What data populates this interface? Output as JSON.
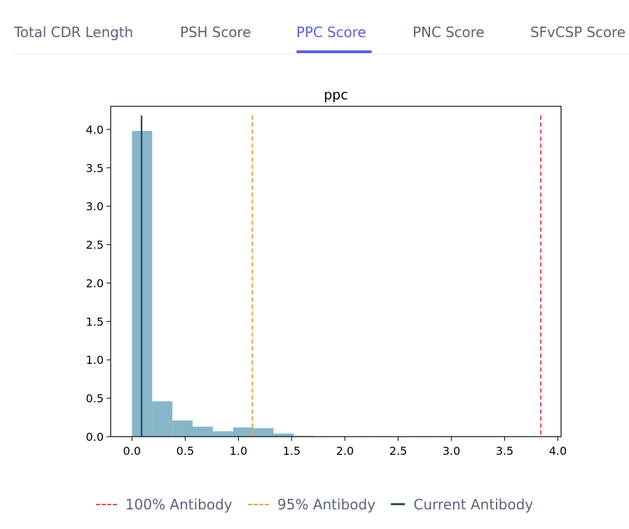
{
  "tabs": [
    {
      "label": "Total CDR Length",
      "active": false
    },
    {
      "label": "PSH Score",
      "active": false
    },
    {
      "label": "PPC Score",
      "active": true
    },
    {
      "label": "PNC Score",
      "active": false
    },
    {
      "label": "SFvCSP Score",
      "active": false
    }
  ],
  "colors": {
    "accent": "#5a61d6",
    "bars": "#86b6c8",
    "line_100": "#e8494b",
    "line_95": "#f0a04a",
    "line_current": "#2f4f67"
  },
  "legend": {
    "items": [
      {
        "label": "100% Antibody",
        "style": "dashed",
        "color": "#e8494b"
      },
      {
        "label": "95% Antibody",
        "style": "dashed",
        "color": "#f0a04a"
      },
      {
        "label": "Current Antibody",
        "style": "solid",
        "color": "#2f4f67"
      }
    ]
  },
  "chart_data": {
    "type": "bar",
    "title": "ppc",
    "xlabel": "",
    "ylabel": "",
    "xlim": [
      -0.2,
      4.03
    ],
    "ylim": [
      0,
      4.3
    ],
    "xticks": [
      0.0,
      0.5,
      1.0,
      1.5,
      2.0,
      2.5,
      3.0,
      3.5,
      4.0
    ],
    "xtick_labels": [
      "0.0",
      "0.5",
      "1.0",
      "1.5",
      "2.0",
      "2.5",
      "3.0",
      "3.5",
      "4.0"
    ],
    "yticks": [
      0.0,
      0.5,
      1.0,
      1.5,
      2.0,
      2.5,
      3.0,
      3.5,
      4.0
    ],
    "ytick_labels": [
      "0.0",
      "0.5",
      "1.0",
      "1.5",
      "2.0",
      "2.5",
      "3.0",
      "3.5",
      "4.0"
    ],
    "bin_edges": [
      0.0,
      0.19,
      0.38,
      0.57,
      0.76,
      0.95,
      1.14,
      1.33,
      1.52,
      1.71,
      1.9,
      2.09,
      2.28,
      2.47,
      2.66,
      2.85,
      3.04,
      3.23,
      3.42,
      3.61,
      3.8
    ],
    "bin_values": [
      3.98,
      0.46,
      0.21,
      0.13,
      0.07,
      0.12,
      0.11,
      0.04,
      0.01,
      0.005,
      0.0,
      0.005,
      0.0,
      0.0,
      0.005,
      0.0,
      0.0,
      0.0,
      0.0,
      0.0
    ],
    "vlines": [
      {
        "name": "100% Antibody",
        "x": 3.84,
        "style": "dashed",
        "color": "#e8494b"
      },
      {
        "name": "95% Antibody",
        "x": 1.13,
        "style": "dashed",
        "color": "#f0a04a"
      },
      {
        "name": "Current Antibody",
        "x": 0.09,
        "style": "solid",
        "color": "#2f4f67"
      }
    ],
    "grid": false,
    "legend_position": "bottom-center"
  }
}
